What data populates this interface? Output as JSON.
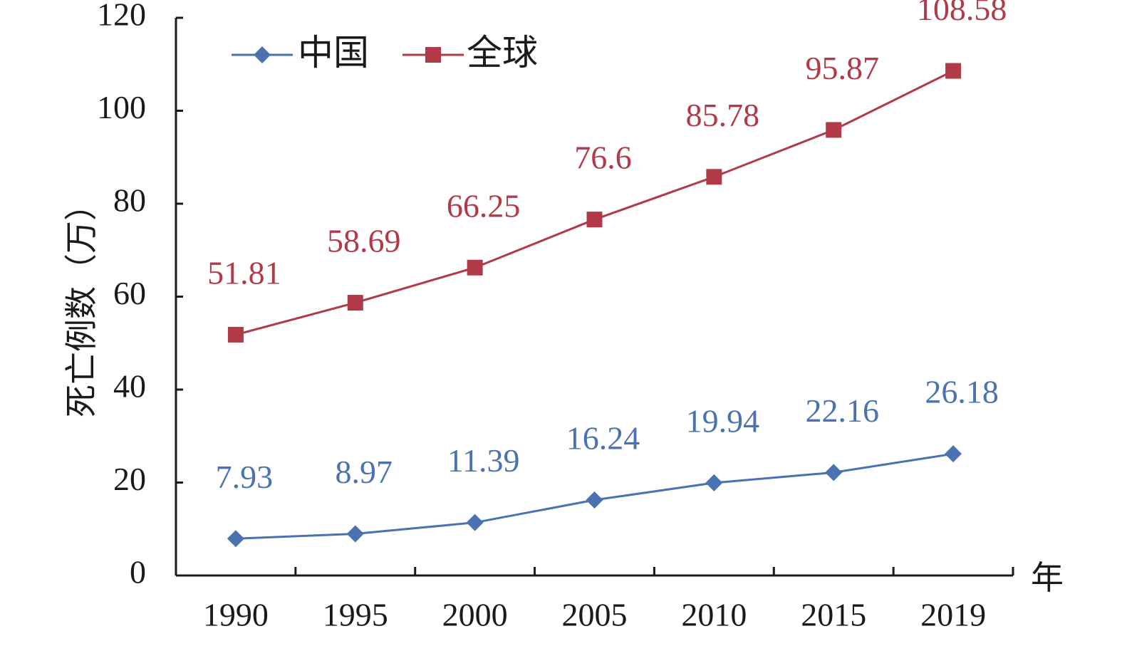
{
  "chart_data": {
    "type": "line",
    "categories": [
      "1990",
      "1995",
      "2000",
      "2005",
      "2010",
      "2015",
      "2019"
    ],
    "series": [
      {
        "name": "中国",
        "values": [
          7.93,
          8.97,
          11.39,
          16.24,
          19.94,
          22.16,
          26.18
        ],
        "labels": [
          "7.93",
          "8.97",
          "11.39",
          "16.24",
          "19.94",
          "22.16",
          "26.18"
        ],
        "color": "#4a72b0",
        "marker": "diamond"
      },
      {
        "name": "全球",
        "values": [
          51.81,
          58.69,
          66.25,
          76.6,
          85.78,
          95.87,
          108.58
        ],
        "labels": [
          "51.81",
          "58.69",
          "66.25",
          "76.6",
          "85.78",
          "95.87",
          "108.58"
        ],
        "color": "#b23a48",
        "marker": "square"
      }
    ],
    "ylabel": "死亡例数（万）",
    "xlabel": "年",
    "ylim": [
      0,
      120
    ],
    "yticks": [
      "0",
      "20",
      "40",
      "60",
      "80",
      "100",
      "120"
    ],
    "grid": false,
    "legend": "top-left"
  }
}
